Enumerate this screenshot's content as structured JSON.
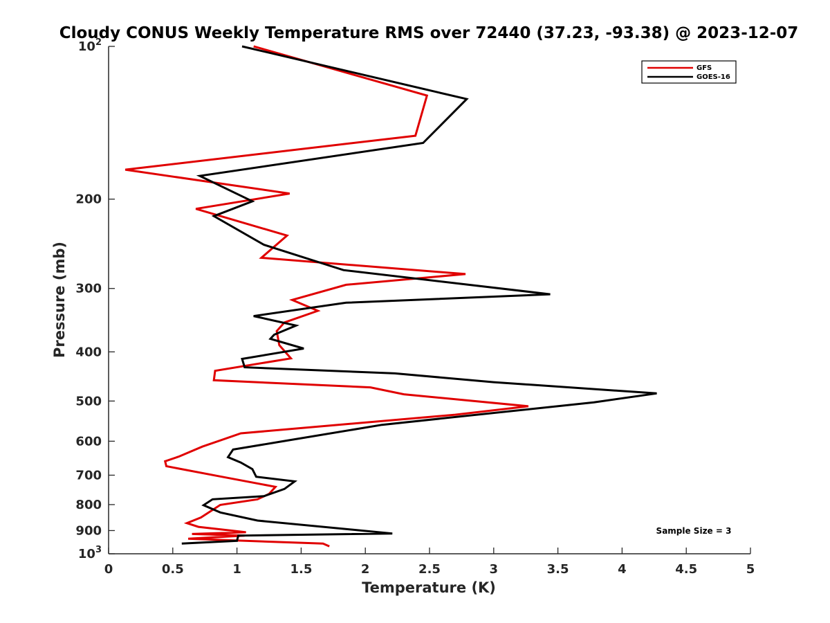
{
  "chart_data": {
    "type": "line",
    "title": "Cloudy CONUS Weekly Temperature RMS over 72440 (37.23, -93.38) @ 2023-12-07",
    "xlabel": "Temperature (K)",
    "ylabel": "Pressure (mb)",
    "xlim": [
      0,
      5
    ],
    "ylim": [
      100,
      1000
    ],
    "yscale": "log",
    "yreversed": true,
    "grid": false,
    "legend_position": "top-right",
    "xticks": [
      "0",
      "0.5",
      "1",
      "1.5",
      "2",
      "2.5",
      "3",
      "3.5",
      "4",
      "4.5",
      "5"
    ],
    "yticks": [
      {
        "value": 100,
        "base": "10",
        "exp": "2"
      },
      {
        "value": 200,
        "label": "200"
      },
      {
        "value": 300,
        "label": "300"
      },
      {
        "value": 400,
        "label": "400"
      },
      {
        "value": 500,
        "label": "500"
      },
      {
        "value": 600,
        "label": "600"
      },
      {
        "value": 700,
        "label": "700"
      },
      {
        "value": 800,
        "label": "800"
      },
      {
        "value": 900,
        "label": "900"
      },
      {
        "value": 1000,
        "base": "10",
        "exp": "3"
      }
    ],
    "annotation": "Sample Size = 3",
    "series": [
      {
        "name": "GFS",
        "color": "#e00000",
        "points": [
          [
            1.13,
            100
          ],
          [
            2.48,
            125
          ],
          [
            2.39,
            150
          ],
          [
            0.13,
            175
          ],
          [
            1.41,
            195
          ],
          [
            0.68,
            209
          ],
          [
            1.39,
            236
          ],
          [
            1.19,
            261
          ],
          [
            2.78,
            281
          ],
          [
            1.85,
            295
          ],
          [
            1.43,
            316
          ],
          [
            1.63,
            332
          ],
          [
            1.37,
            350
          ],
          [
            1.31,
            364
          ],
          [
            1.33,
            388
          ],
          [
            1.42,
            412
          ],
          [
            0.83,
            436
          ],
          [
            0.82,
            455
          ],
          [
            2.04,
            470
          ],
          [
            2.3,
            485
          ],
          [
            3.27,
            512
          ],
          [
            2.7,
            532
          ],
          [
            1.03,
            579
          ],
          [
            0.73,
            615
          ],
          [
            0.55,
            643
          ],
          [
            0.44,
            657
          ],
          [
            0.45,
            672
          ],
          [
            0.87,
            704
          ],
          [
            1.3,
            738
          ],
          [
            1.25,
            762
          ],
          [
            1.16,
            781
          ],
          [
            0.87,
            801
          ],
          [
            0.72,
            848
          ],
          [
            0.61,
            870
          ],
          [
            0.7,
            885
          ],
          [
            1.07,
            907
          ],
          [
            0.65,
            914
          ],
          [
            1.06,
            921
          ],
          [
            0.62,
            934
          ],
          [
            1.67,
            955
          ],
          [
            1.72,
            967
          ]
        ]
      },
      {
        "name": "GOES-16",
        "color": "#000000",
        "points": [
          [
            1.04,
            100
          ],
          [
            2.79,
            127
          ],
          [
            2.45,
            155
          ],
          [
            0.71,
            180
          ],
          [
            1.12,
            202
          ],
          [
            0.82,
            216
          ],
          [
            1.21,
            246
          ],
          [
            1.83,
            276
          ],
          [
            3.44,
            308
          ],
          [
            1.85,
            320
          ],
          [
            1.13,
            340
          ],
          [
            1.46,
            355
          ],
          [
            1.29,
            370
          ],
          [
            1.26,
            377
          ],
          [
            1.52,
            394
          ],
          [
            1.04,
            413
          ],
          [
            1.06,
            429
          ],
          [
            2.23,
            441
          ],
          [
            3.0,
            459
          ],
          [
            4.27,
            483
          ],
          [
            3.78,
            503
          ],
          [
            2.13,
            557
          ],
          [
            1.36,
            600
          ],
          [
            0.97,
            623
          ],
          [
            0.93,
            645
          ],
          [
            1.03,
            661
          ],
          [
            1.12,
            681
          ],
          [
            1.15,
            705
          ],
          [
            1.45,
            720
          ],
          [
            1.37,
            745
          ],
          [
            1.21,
            770
          ],
          [
            0.81,
            781
          ],
          [
            0.74,
            802
          ],
          [
            0.87,
            829
          ],
          [
            1.16,
            860
          ],
          [
            2.21,
            912
          ],
          [
            1.01,
            921
          ],
          [
            1.0,
            943
          ],
          [
            0.57,
            955
          ]
        ]
      }
    ]
  }
}
